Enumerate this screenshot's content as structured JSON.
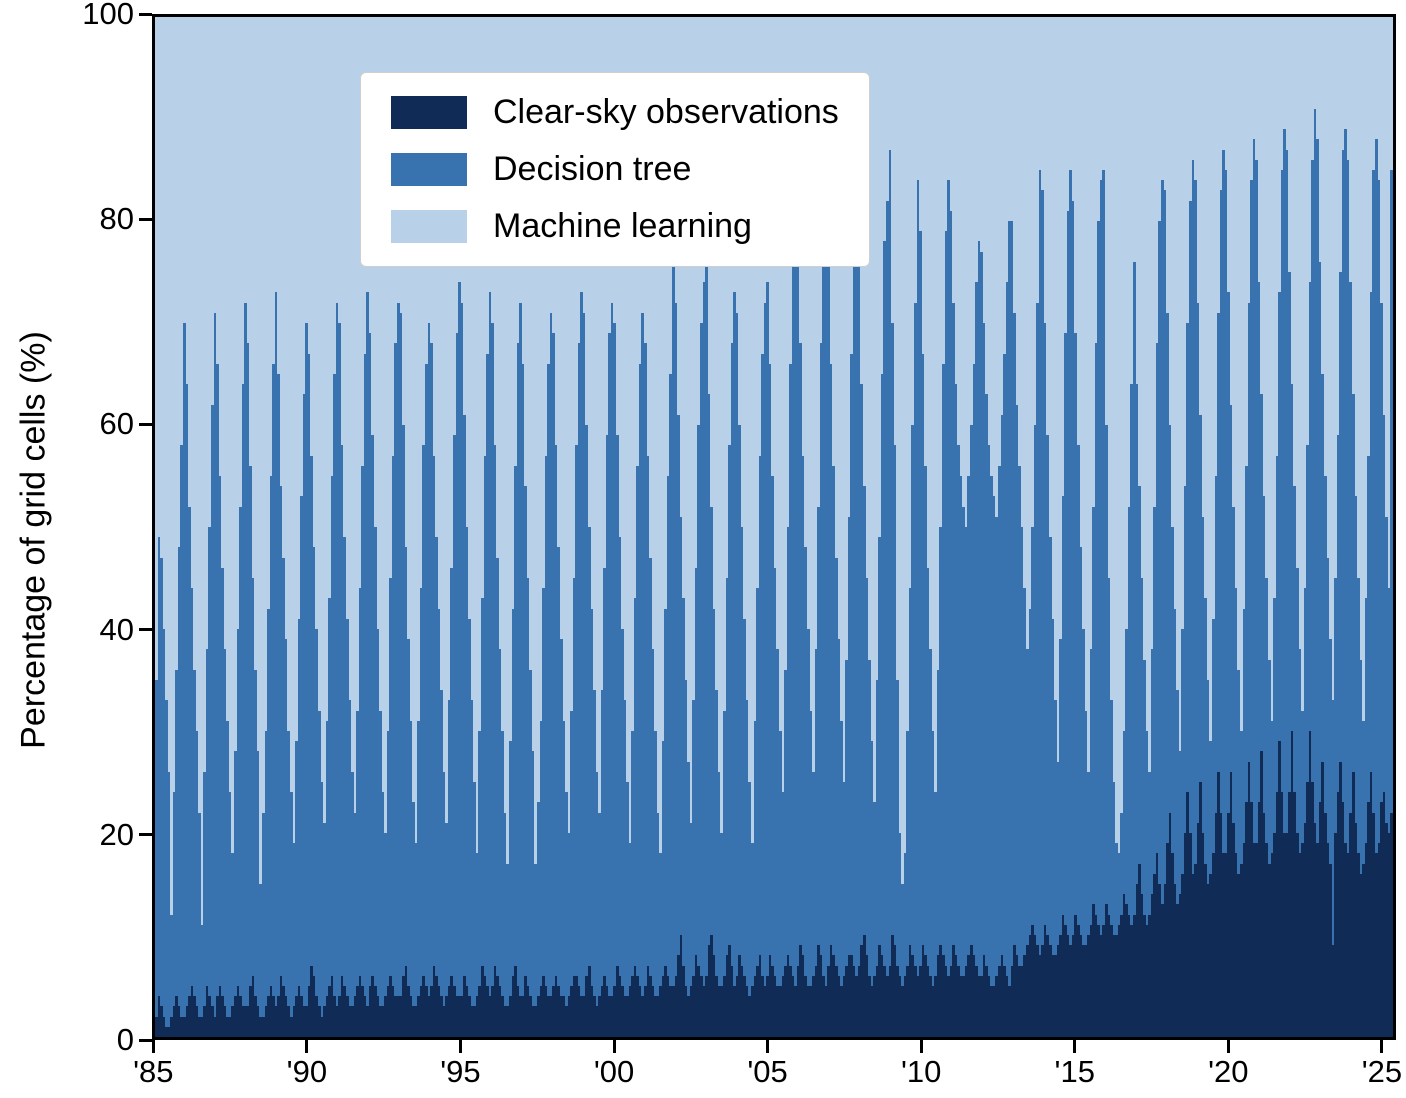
{
  "figure": {
    "ylabel": "Percentage of grid cells (%)",
    "yticks": [
      0,
      20,
      40,
      60,
      80,
      100
    ],
    "xticks": [
      {
        "year": 1985,
        "label": "'85"
      },
      {
        "year": 1990,
        "label": "'90"
      },
      {
        "year": 1995,
        "label": "'95"
      },
      {
        "year": 2000,
        "label": "'00"
      },
      {
        "year": 2005,
        "label": "'05"
      },
      {
        "year": 2010,
        "label": "'10"
      },
      {
        "year": 2015,
        "label": "'15"
      },
      {
        "year": 2020,
        "label": "'20"
      },
      {
        "year": 2025,
        "label": "'25"
      }
    ],
    "background": "#ffffff",
    "axis_color": "#000000"
  },
  "chart_data": {
    "type": "bar",
    "stacked": true,
    "normalized": "each monthly bar sums to 100%",
    "x": {
      "start": "1985-01",
      "end": "2025-06",
      "step": "month",
      "count": 486
    },
    "ylabel": "Percentage of grid cells (%)",
    "ylim": [
      0,
      100
    ],
    "grid": false,
    "legend_position": "upper left",
    "series": [
      {
        "name": "Clear-sky observations",
        "color": "#102c56",
        "values": [
          2,
          4,
          3,
          2,
          1,
          1,
          2,
          3,
          4,
          3,
          2,
          2,
          3,
          4,
          5,
          4,
          3,
          2,
          2,
          3,
          5,
          4,
          3,
          2,
          4,
          5,
          4,
          3,
          2,
          2,
          3,
          4,
          5,
          4,
          3,
          3,
          3,
          5,
          6,
          4,
          3,
          2,
          2,
          3,
          4,
          5,
          4,
          3,
          4,
          6,
          5,
          4,
          3,
          2,
          3,
          4,
          5,
          4,
          3,
          3,
          5,
          7,
          6,
          4,
          3,
          2,
          3,
          4,
          5,
          6,
          4,
          3,
          4,
          6,
          5,
          4,
          3,
          3,
          4,
          5,
          6,
          5,
          4,
          3,
          5,
          6,
          5,
          4,
          3,
          3,
          4,
          5,
          6,
          5,
          4,
          4,
          4,
          6,
          7,
          5,
          4,
          3,
          3,
          4,
          5,
          6,
          5,
          4,
          5,
          7,
          6,
          5,
          4,
          3,
          4,
          5,
          6,
          5,
          4,
          4,
          4,
          6,
          5,
          4,
          3,
          3,
          4,
          5,
          7,
          6,
          5,
          4,
          5,
          7,
          6,
          5,
          4,
          3,
          3,
          4,
          6,
          7,
          5,
          4,
          4,
          6,
          5,
          4,
          3,
          3,
          4,
          5,
          6,
          5,
          4,
          4,
          5,
          6,
          5,
          4,
          4,
          3,
          4,
          5,
          6,
          6,
          5,
          4,
          4,
          6,
          7,
          5,
          4,
          3,
          4,
          5,
          6,
          5,
          4,
          4,
          5,
          7,
          6,
          5,
          4,
          4,
          5,
          6,
          7,
          6,
          5,
          4,
          5,
          7,
          6,
          5,
          4,
          4,
          5,
          6,
          7,
          6,
          5,
          5,
          6,
          8,
          10,
          7,
          5,
          4,
          5,
          6,
          8,
          7,
          6,
          5,
          6,
          9,
          10,
          8,
          6,
          5,
          5,
          6,
          8,
          9,
          7,
          5,
          6,
          8,
          7,
          6,
          5,
          4,
          5,
          6,
          7,
          8,
          6,
          5,
          6,
          8,
          7,
          6,
          5,
          5,
          6,
          7,
          8,
          7,
          6,
          5,
          7,
          9,
          8,
          6,
          5,
          5,
          6,
          7,
          9,
          8,
          6,
          5,
          7,
          9,
          8,
          7,
          6,
          5,
          6,
          7,
          8,
          8,
          7,
          6,
          7,
          9,
          10,
          8,
          6,
          5,
          6,
          7,
          9,
          8,
          7,
          6,
          7,
          10,
          9,
          7,
          6,
          5,
          6,
          7,
          9,
          8,
          7,
          6,
          7,
          9,
          8,
          7,
          6,
          5,
          6,
          8,
          9,
          8,
          7,
          6,
          7,
          9,
          8,
          7,
          6,
          6,
          7,
          8,
          9,
          8,
          7,
          6,
          6,
          8,
          7,
          6,
          5,
          5,
          6,
          7,
          8,
          7,
          6,
          5,
          7,
          9,
          8,
          7,
          7,
          8,
          9,
          10,
          11,
          10,
          9,
          8,
          9,
          11,
          10,
          9,
          8,
          8,
          9,
          10,
          12,
          11,
          10,
          9,
          10,
          12,
          11,
          10,
          9,
          9,
          10,
          11,
          13,
          12,
          11,
          10,
          11,
          13,
          12,
          11,
          10,
          10,
          11,
          12,
          14,
          13,
          12,
          11,
          12,
          15,
          17,
          14,
          12,
          11,
          12,
          14,
          16,
          18,
          15,
          13,
          15,
          19,
          22,
          18,
          15,
          13,
          14,
          16,
          20,
          24,
          20,
          16,
          17,
          21,
          25,
          20,
          17,
          15,
          16,
          18,
          22,
          26,
          22,
          18,
          18,
          22,
          26,
          21,
          18,
          16,
          17,
          19,
          23,
          27,
          23,
          19,
          19,
          23,
          28,
          22,
          19,
          17,
          18,
          20,
          24,
          29,
          24,
          20,
          20,
          24,
          30,
          24,
          20,
          18,
          19,
          21,
          25,
          30,
          25,
          21,
          19,
          23,
          27,
          22,
          19,
          17,
          9,
          20,
          24,
          27,
          23,
          19,
          18,
          22,
          26,
          21,
          18,
          16,
          17,
          19,
          23,
          26,
          22,
          18,
          19,
          23,
          24,
          21,
          20,
          22
        ]
      },
      {
        "name": "Decision tree",
        "color": "#3873b0",
        "values": [
          33,
          45,
          44,
          38,
          32,
          25,
          10,
          21,
          32,
          45,
          56,
          68,
          61,
          48,
          39,
          32,
          27,
          20,
          9,
          23,
          33,
          46,
          59,
          69,
          62,
          50,
          42,
          35,
          29,
          22,
          15,
          24,
          35,
          48,
          61,
          69,
          65,
          51,
          39,
          32,
          25,
          13,
          20,
          27,
          38,
          50,
          62,
          70,
          61,
          48,
          42,
          35,
          27,
          22,
          16,
          25,
          36,
          49,
          60,
          67,
          62,
          50,
          42,
          36,
          29,
          23,
          18,
          27,
          38,
          49,
          61,
          69,
          66,
          52,
          44,
          37,
          30,
          23,
          18,
          27,
          38,
          51,
          63,
          70,
          64,
          53,
          45,
          36,
          29,
          21,
          16,
          25,
          39,
          52,
          64,
          68,
          67,
          54,
          41,
          34,
          27,
          20,
          16,
          27,
          39,
          52,
          61,
          66,
          63,
          50,
          43,
          37,
          30,
          23,
          17,
          28,
          40,
          54,
          65,
          70,
          68,
          55,
          45,
          37,
          30,
          22,
          14,
          25,
          36,
          51,
          62,
          69,
          65,
          51,
          41,
          33,
          26,
          19,
          14,
          25,
          36,
          49,
          63,
          68,
          62,
          48,
          40,
          32,
          25,
          14,
          19,
          26,
          38,
          52,
          62,
          67,
          64,
          52,
          43,
          35,
          27,
          21,
          16,
          27,
          39,
          52,
          63,
          69,
          67,
          54,
          43,
          37,
          30,
          23,
          18,
          29,
          40,
          54,
          65,
          68,
          65,
          52,
          43,
          35,
          29,
          21,
          14,
          24,
          36,
          50,
          61,
          67,
          63,
          50,
          41,
          33,
          26,
          18,
          13,
          23,
          35,
          49,
          60,
          72,
          66,
          53,
          41,
          36,
          30,
          23,
          16,
          27,
          38,
          53,
          64,
          69,
          71,
          54,
          42,
          34,
          28,
          21,
          15,
          26,
          37,
          49,
          61,
          68,
          65,
          52,
          43,
          35,
          28,
          21,
          14,
          25,
          37,
          49,
          61,
          67,
          68,
          58,
          48,
          40,
          33,
          25,
          18,
          29,
          42,
          59,
          73,
          78,
          73,
          59,
          49,
          42,
          35,
          27,
          20,
          31,
          43,
          60,
          75,
          82,
          71,
          57,
          48,
          40,
          33,
          26,
          19,
          30,
          43,
          59,
          73,
          78,
          69,
          55,
          44,
          37,
          31,
          24,
          17,
          28,
          40,
          57,
          71,
          76,
          80,
          60,
          49,
          28,
          14,
          10,
          12,
          23,
          35,
          52,
          65,
          78,
          72,
          58,
          48,
          39,
          32,
          25,
          18,
          28,
          41,
          58,
          72,
          78,
          74,
          63,
          56,
          51,
          49,
          46,
          43,
          47,
          51,
          58,
          67,
          72,
          71,
          62,
          56,
          52,
          50,
          48,
          45,
          49,
          53,
          60,
          68,
          75,
          73,
          62,
          54,
          49,
          43,
          36,
          29,
          32,
          39,
          50,
          63,
          77,
          74,
          59,
          49,
          40,
          33,
          25,
          18,
          29,
          41,
          58,
          71,
          76,
          72,
          57,
          47,
          38,
          31,
          23,
          16,
          27,
          39,
          56,
          69,
          74,
          74,
          47,
          33,
          22,
          15,
          9,
          7,
          10,
          16,
          27,
          40,
          53,
          64,
          49,
          37,
          31,
          25,
          19,
          14,
          24,
          36,
          50,
          65,
          71,
          68,
          52,
          38,
          32,
          27,
          21,
          14,
          24,
          34,
          46,
          62,
          70,
          67,
          51,
          36,
          31,
          26,
          20,
          13,
          23,
          33,
          45,
          61,
          69,
          67,
          51,
          36,
          31,
          26,
          20,
          13,
          23,
          33,
          45,
          61,
          69,
          67,
          51,
          35,
          31,
          26,
          20,
          13,
          23,
          33,
          44,
          61,
          69,
          67,
          51,
          34,
          30,
          26,
          20,
          13,
          23,
          33,
          44,
          61,
          70,
          69,
          53,
          38,
          33,
          28,
          22,
          24,
          25,
          35,
          48,
          64,
          70,
          68,
          52,
          37,
          32,
          27,
          21,
          14,
          24,
          34,
          47,
          63,
          70,
          65,
          49,
          37,
          30,
          24,
          63
        ]
      },
      {
        "name": "Machine learning",
        "color": "#b8d1e8",
        "values": "remainder to 100 (bars are normalized, this series fills each bar to 100%)"
      }
    ]
  }
}
